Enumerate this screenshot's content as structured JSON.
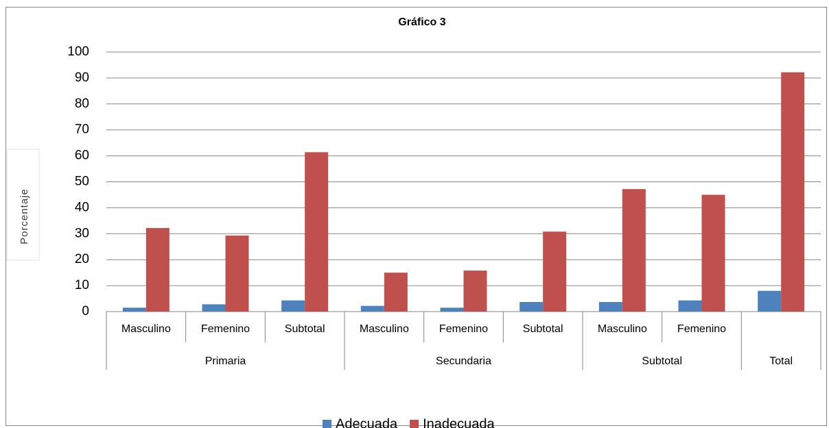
{
  "chart_data": {
    "type": "bar",
    "title": "Gráfico 3",
    "y_label": "Porcentaje",
    "categories": [
      [
        "Masculino",
        "Primaria"
      ],
      [
        "Femenino",
        "Primaria"
      ],
      [
        "Subtotal",
        "Primaria"
      ],
      [
        "Masculino",
        "Secundaria"
      ],
      [
        "Femenino",
        "Secundaria"
      ],
      [
        "Subtotal",
        "Secundaria"
      ],
      [
        "Masculino",
        "Subtotal"
      ],
      [
        "Femenino",
        "Subtotal"
      ],
      [
        null,
        "Total"
      ]
    ],
    "series": [
      {
        "name": "Adecuada",
        "color": "#4f81bd",
        "values": [
          1.5,
          2.8,
          4.3,
          2.2,
          1.5,
          3.7,
          3.7,
          4.3,
          8.0
        ]
      },
      {
        "name": "Inadecuada",
        "color": "#c0504d",
        "values": [
          32.2,
          29.3,
          61.4,
          15.0,
          15.8,
          30.8,
          47.2,
          45.0,
          92.2
        ]
      }
    ],
    "ylim": [
      0,
      100
    ],
    "yticks": [
      0,
      10,
      20,
      30,
      40,
      50,
      60,
      70,
      80,
      90,
      100
    ],
    "grid": true,
    "legend": "bottom"
  }
}
